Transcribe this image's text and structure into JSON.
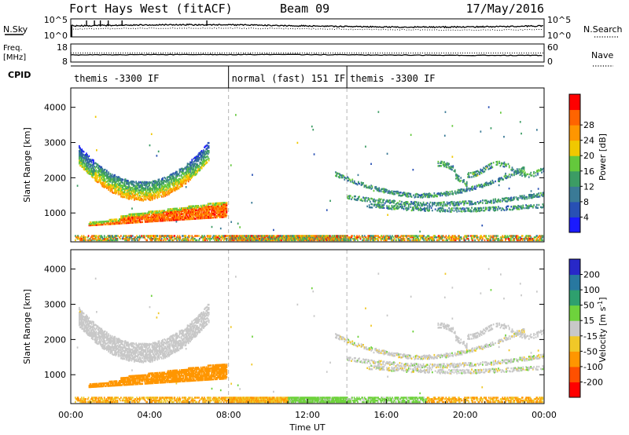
{
  "header": {
    "station": "Fort Hays West (fitACF)",
    "beam": "Beam 09",
    "date": "17/May/2016"
  },
  "chart_data": {
    "type": "heatmap",
    "time_axis": {
      "label": "Time UT",
      "ticks": [
        "00:00",
        "04:00",
        "08:00",
        "12:00",
        "16:00",
        "20:00",
        "00:00"
      ],
      "range_hours": [
        0,
        24
      ]
    },
    "top_panels": {
      "nsky": {
        "label": "N.Sky",
        "tick_top": "10^5",
        "tick_bottom": "10^0"
      },
      "nsearch": {
        "label": "N.Search",
        "tick_top": "10^5",
        "tick_bottom": "10^0"
      },
      "freq": {
        "label_line1": "Freq.",
        "label_line2": "[MHz]",
        "tick_top": "18",
        "tick_bottom": "8"
      },
      "nave": {
        "label": "Nave",
        "tick_top": "60",
        "tick_bottom": "0"
      }
    },
    "cpid": {
      "label": "CPID",
      "segments": [
        {
          "name": "themis -3300 IF",
          "start_hour": 0,
          "end_hour": 8
        },
        {
          "name": "normal (fast) 151 IF",
          "start_hour": 8,
          "end_hour": 14
        },
        {
          "name": "themis -3300 IF",
          "start_hour": 14,
          "end_hour": 24
        }
      ]
    },
    "range_axis": {
      "label": "Slant Range [km]",
      "ticks": [
        "1000",
        "2000",
        "3000",
        "4000"
      ],
      "range_km": [
        180,
        4550
      ]
    },
    "power": {
      "colorbar_label": "Power [dB]",
      "colorbar_ticks": [
        "4",
        "8",
        "12",
        "16",
        "20",
        "24",
        "28"
      ],
      "range": [
        0,
        32
      ],
      "colors": [
        "#1a1aff",
        "#2850b4",
        "#3a7a96",
        "#3c9c64",
        "#64c83c",
        "#f0c800",
        "#ff9600",
        "#ff6400",
        "#ff0000"
      ]
    },
    "velocity": {
      "colorbar_label": "Velocity [m s^-1]",
      "colorbar_ticks": [
        "200",
        "100",
        "50",
        "15",
        "-15",
        "-50",
        "-100",
        "-200"
      ],
      "colors": [
        "#2828c8",
        "#2878a0",
        "#2ea06e",
        "#6ed23c",
        "#c8c8c8",
        "#f0c828",
        "#ff9600",
        "#ff5000",
        "#ff0000"
      ]
    }
  }
}
